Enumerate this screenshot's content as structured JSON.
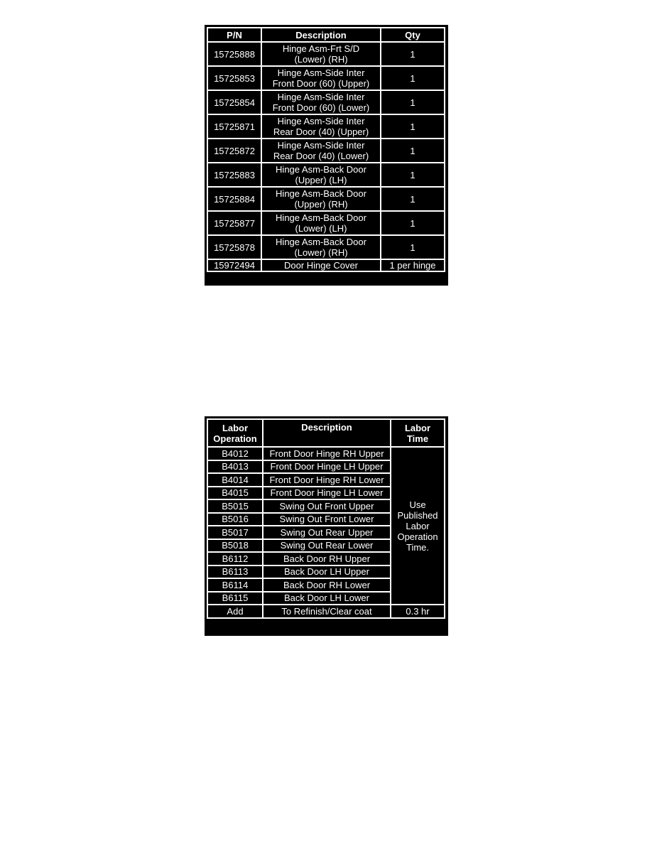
{
  "parts_table": {
    "headers": [
      "P/N",
      "Description",
      "Qty"
    ],
    "rows": [
      {
        "pn": "15725888",
        "desc1": "Hinge Asm-Frt S/D",
        "desc2": "(Lower) (RH)",
        "qty": "1"
      },
      {
        "pn": "15725853",
        "desc1": "Hinge Asm-Side Inter",
        "desc2": "Front Door (60) (Upper)",
        "qty": "1"
      },
      {
        "pn": "15725854",
        "desc1": "Hinge Asm-Side Inter",
        "desc2": "Front Door (60) (Lower)",
        "qty": "1"
      },
      {
        "pn": "15725871",
        "desc1": "Hinge Asm-Side Inter",
        "desc2": "Rear Door (40) (Upper)",
        "qty": "1"
      },
      {
        "pn": "15725872",
        "desc1": "Hinge Asm-Side Inter",
        "desc2": "Rear Door (40) (Lower)",
        "qty": "1"
      },
      {
        "pn": "15725883",
        "desc1": "Hinge Asm-Back Door",
        "desc2": "(Upper) (LH)",
        "qty": "1"
      },
      {
        "pn": "15725884",
        "desc1": "Hinge Asm-Back Door",
        "desc2": "(Upper) (RH)",
        "qty": "1"
      },
      {
        "pn": "15725877",
        "desc1": "Hinge Asm-Back Door",
        "desc2": "(Lower) (LH)",
        "qty": "1"
      },
      {
        "pn": "15725878",
        "desc1": "Hinge Asm-Back Door",
        "desc2": "(Lower) (RH)",
        "qty": "1"
      }
    ],
    "last_row": {
      "pn": "15972494",
      "desc": "Door Hinge Cover",
      "qty": "1 per hinge"
    }
  },
  "labor_table": {
    "headers": {
      "op1": "Labor",
      "op2": "Operation",
      "desc": "Description",
      "time1": "Labor",
      "time2": "Time"
    },
    "rows": [
      {
        "op": "B4012",
        "desc": "Front Door Hinge RH Upper"
      },
      {
        "op": "B4013",
        "desc": "Front Door Hinge LH Upper"
      },
      {
        "op": "B4014",
        "desc": "Front Door Hinge RH Lower"
      },
      {
        "op": "B4015",
        "desc": "Front Door Hinge LH Lower"
      },
      {
        "op": "B5015",
        "desc": "Swing Out Front Upper"
      },
      {
        "op": "B5016",
        "desc": "Swing Out Front Lower"
      },
      {
        "op": "B5017",
        "desc": "Swing Out Rear Upper"
      },
      {
        "op": "B5018",
        "desc": "Swing Out Rear Lower"
      },
      {
        "op": "B6112",
        "desc": "Back Door RH Upper"
      },
      {
        "op": "B6113",
        "desc": "Back Door LH Upper"
      },
      {
        "op": "B6114",
        "desc": "Back Door RH Lower"
      },
      {
        "op": "B6115",
        "desc": "Back Door LH Lower"
      }
    ],
    "labor_time_lines": [
      "Use",
      "Published",
      "Labor",
      "Operation",
      "Time."
    ],
    "last_row": {
      "op": "Add",
      "desc": "To Refinish/Clear coat",
      "time": "0.3 hr"
    }
  }
}
